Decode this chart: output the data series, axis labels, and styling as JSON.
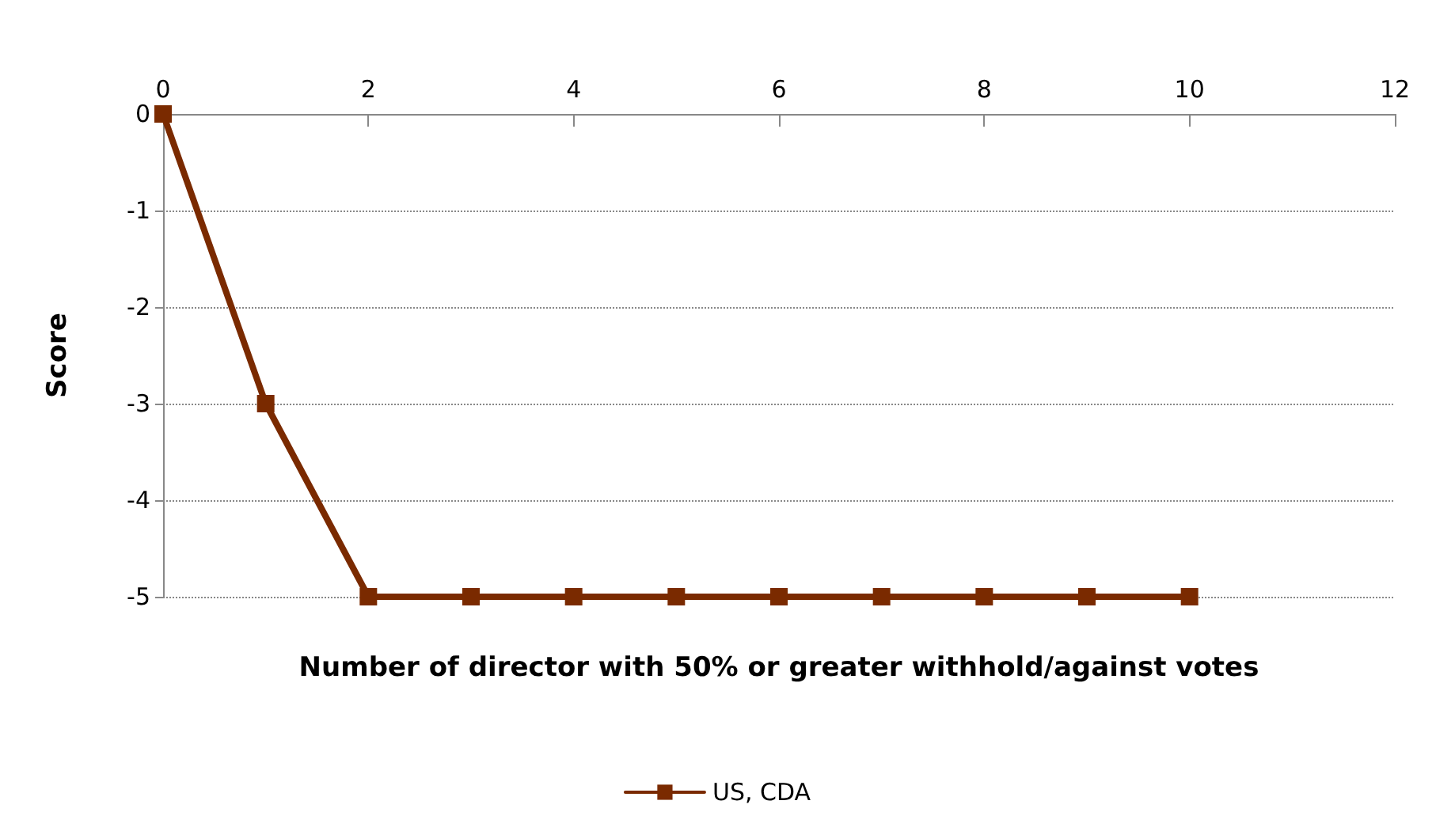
{
  "chart_data": {
    "type": "line",
    "xlabel": "Number of director with 50% or greater withhold/against votes",
    "ylabel": "Score",
    "x": [
      0,
      1,
      2,
      3,
      4,
      5,
      6,
      7,
      8,
      9,
      10
    ],
    "series": [
      {
        "name": "US, CDA",
        "color": "#7a2a00",
        "values": [
          0,
          -3,
          -5,
          -5,
          -5,
          -5,
          -5,
          -5,
          -5,
          -5,
          -5
        ]
      }
    ],
    "xlim": [
      0,
      12
    ],
    "xticks": [
      0,
      2,
      4,
      6,
      8,
      10,
      12
    ],
    "ylim": [
      -5,
      0
    ],
    "yticks": [
      0,
      -1,
      -2,
      -3,
      -4,
      -5
    ],
    "grid": "y",
    "legend": "bottom",
    "marker": "square",
    "line_style": "solid"
  }
}
